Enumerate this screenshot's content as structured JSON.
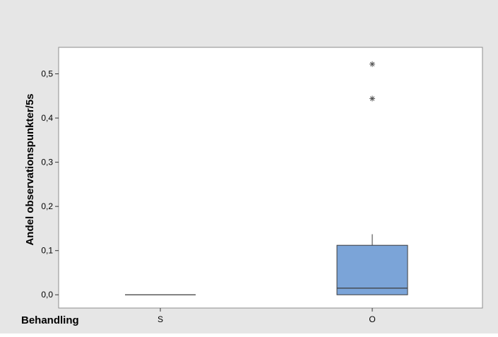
{
  "chart_data": {
    "type": "boxplot",
    "title": "",
    "ylabel": "Andel observationspunkter/5s",
    "xlabel": "Behandling",
    "categories": [
      "S",
      "O"
    ],
    "ylim": [
      -0.03,
      0.56
    ],
    "yticks": [
      0.0,
      0.1,
      0.2,
      0.3,
      0.4,
      0.5
    ],
    "ytick_labels": [
      "0,0",
      "0,1",
      "0,2",
      "0,3",
      "0,4",
      "0,5"
    ],
    "boxes": [
      {
        "category": "S",
        "whisker_low": 0.0,
        "q1": 0.0,
        "median": 0.0,
        "q3": 0.0,
        "whisker_high": 0.0,
        "outliers": []
      },
      {
        "category": "O",
        "whisker_low": 0.0,
        "q1": 0.0,
        "median": 0.015,
        "q3": 0.112,
        "whisker_high": 0.137,
        "outliers": [
          0.444,
          0.522
        ]
      }
    ],
    "grid": false,
    "colors": {
      "box_fill": "#7ba4d8",
      "box_stroke": "#3a3a3a",
      "frame_bg": "#e6e6e6",
      "plot_bg": "#ffffff"
    }
  }
}
